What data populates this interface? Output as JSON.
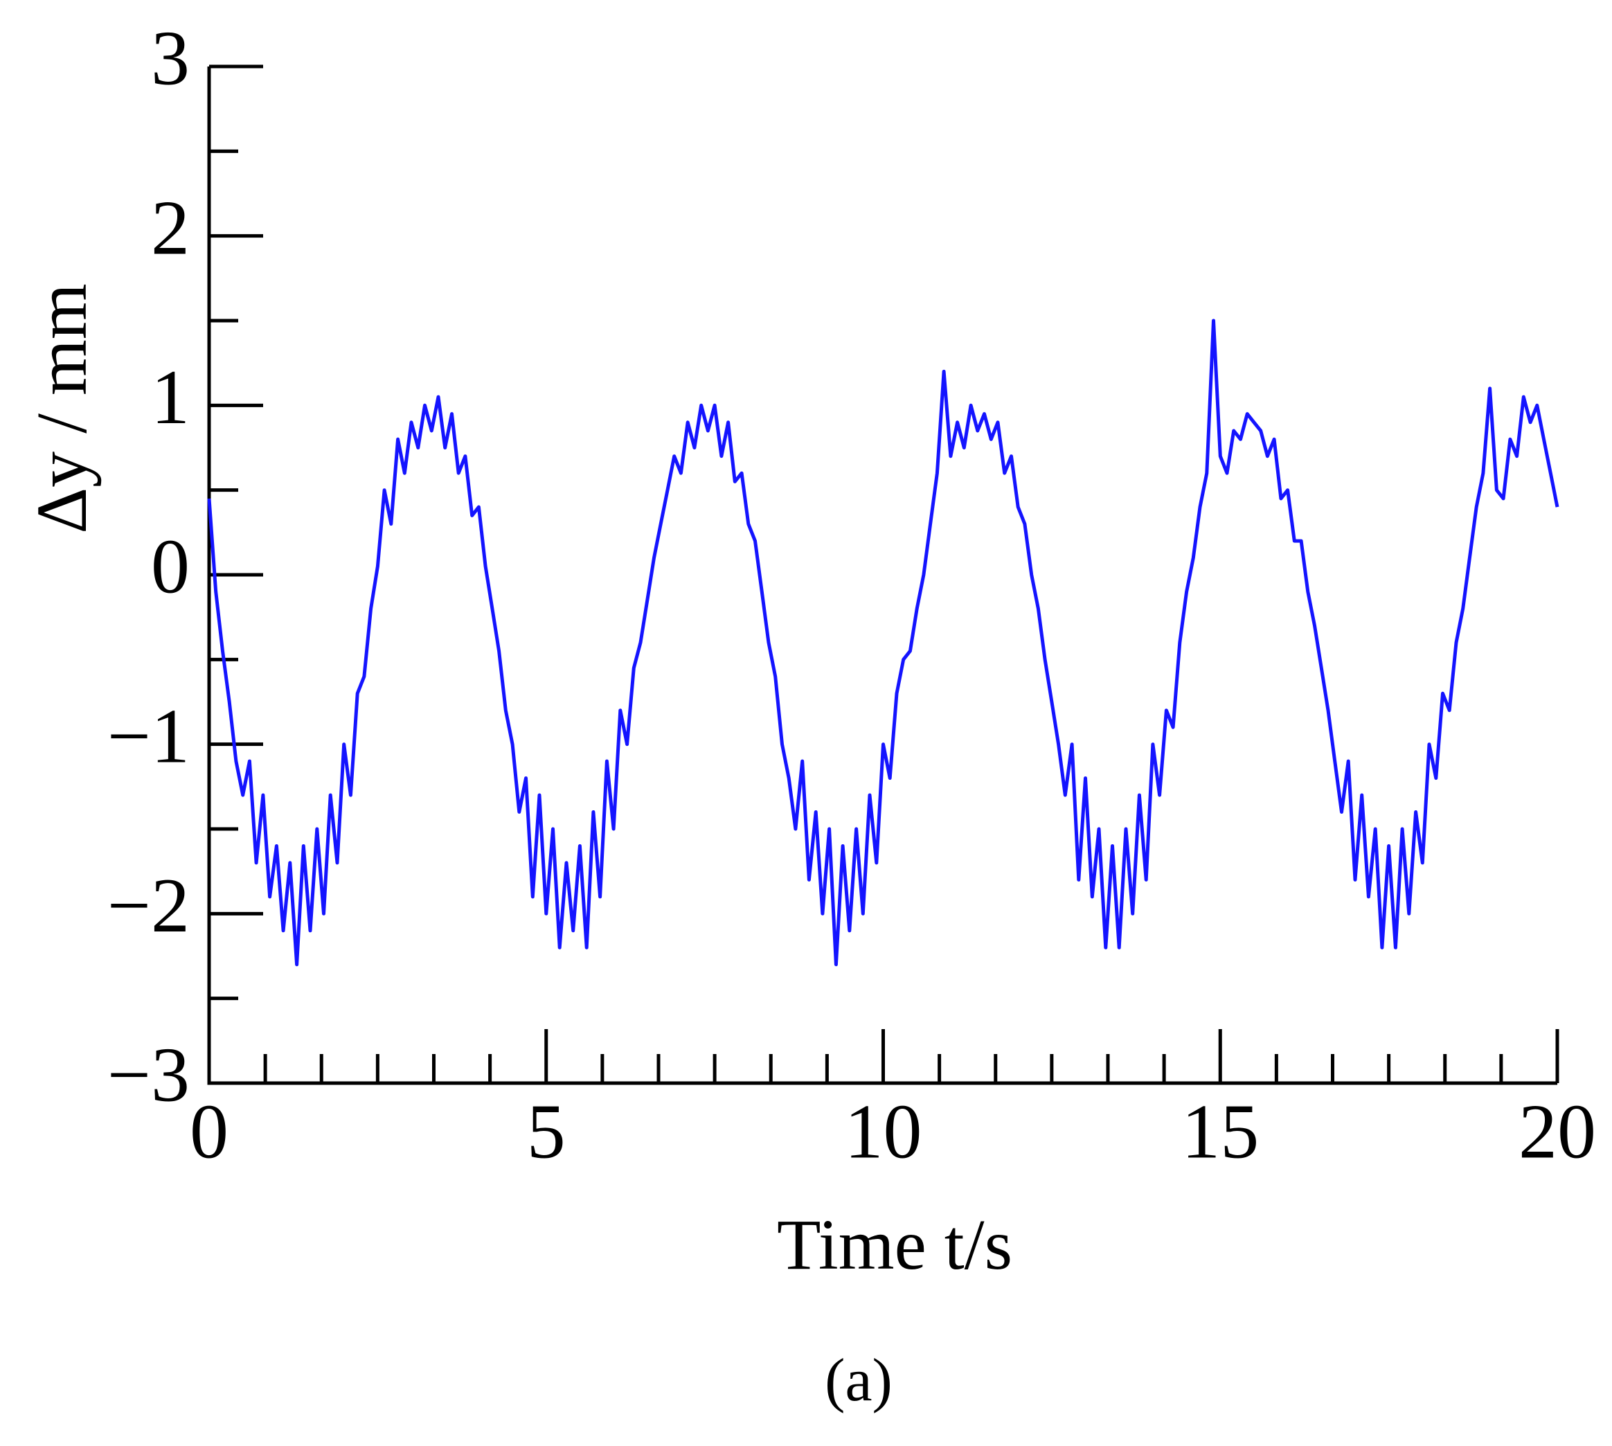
{
  "chart_data": {
    "type": "line",
    "xlabel": "Time t/s",
    "ylabel": "Δy / mm",
    "caption": "(a)",
    "xlim": [
      0,
      20
    ],
    "ylim": [
      -3,
      3
    ],
    "xticks": [
      0,
      5,
      10,
      15,
      20
    ],
    "xticks_minor": [
      0.8333,
      1.6667,
      2.5,
      3.3333,
      4.1667,
      5.8333,
      6.6667,
      7.5,
      8.3333,
      9.1667,
      10.8333,
      11.6667,
      12.5,
      13.3333,
      14.1667,
      15.8333,
      16.6667,
      17.5,
      18.3333,
      19.1667
    ],
    "yticks": [
      {
        "value": -3,
        "label": "−3"
      },
      {
        "value": -2,
        "label": "−2"
      },
      {
        "value": -1,
        "label": "−1"
      },
      0,
      1,
      2,
      3
    ],
    "yticks_minor": [
      -2.5,
      -1.5,
      -0.5,
      0.5,
      1.5,
      2.5
    ],
    "color": "#1414ff",
    "x": [
      0,
      0.1,
      0.2,
      0.3,
      0.4,
      0.5,
      0.6,
      0.7,
      0.8,
      0.9,
      1,
      1.1,
      1.2,
      1.3,
      1.4,
      1.5,
      1.6,
      1.7,
      1.8,
      1.9,
      2,
      2.1,
      2.2,
      2.3,
      2.4,
      2.5,
      2.6,
      2.7,
      2.8,
      2.9,
      3,
      3.1,
      3.2,
      3.3,
      3.4,
      3.5,
      3.6,
      3.7,
      3.8,
      3.9,
      4,
      4.1,
      4.2,
      4.3,
      4.4,
      4.5,
      4.6,
      4.7,
      4.8,
      4.9,
      5,
      5.1,
      5.2,
      5.3,
      5.4,
      5.5,
      5.6,
      5.7,
      5.8,
      5.9,
      6,
      6.1,
      6.2,
      6.3,
      6.4,
      6.5,
      6.6,
      6.7,
      6.8,
      6.9,
      7,
      7.1,
      7.2,
      7.3,
      7.4,
      7.5,
      7.6,
      7.7,
      7.8,
      7.9,
      8,
      8.1,
      8.2,
      8.3,
      8.4,
      8.5,
      8.6,
      8.7,
      8.8,
      8.9,
      9,
      9.1,
      9.2,
      9.3,
      9.4,
      9.5,
      9.6,
      9.7,
      9.8,
      9.9,
      10,
      10.1,
      10.2,
      10.3,
      10.4,
      10.5,
      10.6,
      10.7,
      10.8,
      10.9,
      11,
      11.1,
      11.2,
      11.3,
      11.4,
      11.5,
      11.6,
      11.7,
      11.8,
      11.9,
      12,
      12.1,
      12.2,
      12.3,
      12.4,
      12.5,
      12.6,
      12.7,
      12.8,
      12.9,
      13,
      13.1,
      13.2,
      13.3,
      13.4,
      13.5,
      13.6,
      13.7,
      13.8,
      13.9,
      14,
      14.1,
      14.2,
      14.3,
      14.4,
      14.5,
      14.6,
      14.7,
      14.8,
      14.9,
      15,
      15.1,
      15.2,
      15.3,
      15.4,
      15.5,
      15.6,
      15.7,
      15.8,
      15.9,
      16,
      16.1,
      16.2,
      16.3,
      16.4,
      16.5,
      16.6,
      16.7,
      16.8,
      16.9,
      17,
      17.1,
      17.2,
      17.3,
      17.4,
      17.5,
      17.6,
      17.7,
      17.8,
      17.9,
      18,
      18.1,
      18.2,
      18.3,
      18.4,
      18.5,
      18.6,
      18.7,
      18.8,
      18.9,
      19,
      19.1,
      19.2,
      19.3,
      19.4,
      19.5,
      19.6,
      19.7,
      19.8,
      19.9,
      20
    ],
    "values": [
      0.45,
      -0.1,
      -0.45,
      -0.75,
      -1.1,
      -1.3,
      -1.1,
      -1.7,
      -1.3,
      -1.9,
      -1.6,
      -2.1,
      -1.7,
      -2.3,
      -1.6,
      -2.1,
      -1.5,
      -2.0,
      -1.3,
      -1.7,
      -1.0,
      -1.3,
      -0.7,
      -0.6,
      -0.2,
      0.05,
      0.5,
      0.3,
      0.8,
      0.6,
      0.9,
      0.75,
      1.0,
      0.85,
      1.05,
      0.75,
      0.95,
      0.6,
      0.7,
      0.35,
      0.4,
      0.05,
      -0.2,
      -0.45,
      -0.8,
      -1.0,
      -1.4,
      -1.2,
      -1.9,
      -1.3,
      -2.0,
      -1.5,
      -2.2,
      -1.7,
      -2.1,
      -1.6,
      -2.2,
      -1.4,
      -1.9,
      -1.1,
      -1.5,
      -0.8,
      -1.0,
      -0.55,
      -0.4,
      -0.15,
      0.1,
      0.3,
      0.5,
      0.7,
      0.6,
      0.9,
      0.75,
      1.0,
      0.85,
      1.0,
      0.7,
      0.9,
      0.55,
      0.6,
      0.3,
      0.2,
      -0.1,
      -0.4,
      -0.6,
      -1.0,
      -1.2,
      -1.5,
      -1.1,
      -1.8,
      -1.4,
      -2.0,
      -1.5,
      -2.3,
      -1.6,
      -2.1,
      -1.5,
      -2.0,
      -1.3,
      -1.7,
      -1.0,
      -1.2,
      -0.7,
      -0.5,
      -0.45,
      -0.2,
      0.0,
      0.3,
      0.6,
      1.2,
      0.7,
      0.9,
      0.75,
      1.0,
      0.85,
      0.95,
      0.8,
      0.9,
      0.6,
      0.7,
      0.4,
      0.3,
      0.0,
      -0.2,
      -0.5,
      -0.75,
      -1.0,
      -1.3,
      -1.0,
      -1.8,
      -1.2,
      -1.9,
      -1.5,
      -2.2,
      -1.6,
      -2.2,
      -1.5,
      -2.0,
      -1.3,
      -1.8,
      -1.0,
      -1.3,
      -0.8,
      -0.9,
      -0.4,
      -0.1,
      0.1,
      0.4,
      0.6,
      1.5,
      0.7,
      0.6,
      0.85,
      0.8,
      0.95,
      0.9,
      0.85,
      0.7,
      0.8,
      0.45,
      0.5,
      0.2,
      0.2,
      -0.1,
      -0.3,
      -0.55,
      -0.8,
      -1.1,
      -1.4,
      -1.1,
      -1.8,
      -1.3,
      -1.9,
      -1.5,
      -2.2,
      -1.6,
      -2.2,
      -1.5,
      -2.0,
      -1.4,
      -1.7,
      -1.0,
      -1.2,
      -0.7,
      -0.8,
      -0.4,
      -0.2,
      0.1,
      0.4,
      0.6,
      1.1,
      0.5,
      0.45,
      0.8,
      0.7,
      1.05,
      0.9,
      1.0,
      0.8,
      0.6,
      0.4
    ]
  }
}
